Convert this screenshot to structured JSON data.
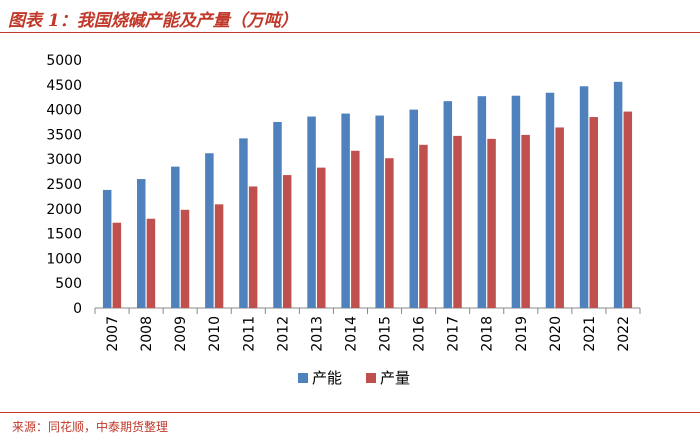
{
  "header": {
    "title": "图表 1：我国烧碱产能及产量（万吨）"
  },
  "footer": {
    "source": "来源：同花顺，中泰期货整理"
  },
  "chart_data": {
    "type": "bar",
    "title": "图表 1：我国烧碱产能及产量（万吨）",
    "categories": [
      "2007",
      "2008",
      "2009",
      "2010",
      "2011",
      "2012",
      "2013",
      "2014",
      "2015",
      "2016",
      "2017",
      "2018",
      "2019",
      "2020",
      "2021",
      "2022"
    ],
    "series": [
      {
        "name": "产能",
        "color": "#4f81bd",
        "values": [
          2380,
          2600,
          2850,
          3120,
          3420,
          3750,
          3860,
          3920,
          3880,
          4000,
          4170,
          4270,
          4280,
          4340,
          4470,
          4560
        ]
      },
      {
        "name": "产量",
        "color": "#c0504d",
        "values": [
          1720,
          1800,
          1980,
          2090,
          2450,
          2680,
          2830,
          3170,
          3020,
          3290,
          3470,
          3410,
          3490,
          3640,
          3850,
          3960
        ]
      }
    ],
    "yticks": [
      "0",
      "500",
      "1000",
      "1500",
      "2000",
      "2500",
      "3000",
      "3500",
      "4000",
      "4500",
      "5000"
    ],
    "ylim": [
      0,
      5000
    ],
    "grid": false,
    "legend_position": "bottom"
  }
}
